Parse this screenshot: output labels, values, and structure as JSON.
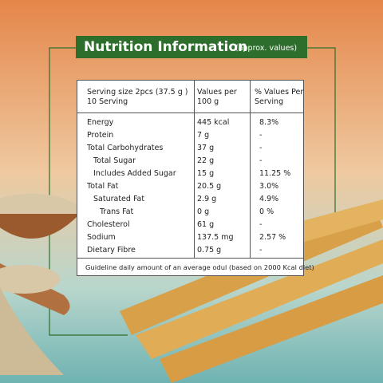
{
  "header": {
    "title": "Nutrition Information",
    "subtitle": "(approx. values)"
  },
  "table": {
    "columns": [
      [
        "Serving size 2pcs (37.5 g )",
        "10 Serving"
      ],
      [
        "Values per",
        "100 g"
      ],
      [
        "% Values Per",
        "Serving"
      ]
    ],
    "rows": [
      {
        "cells": [
          "Energy",
          "445 kcal",
          "8.3%"
        ],
        "indent": 0
      },
      {
        "cells": [
          "Protein",
          "7 g",
          "-"
        ],
        "indent": 0
      },
      {
        "cells": [
          "Total Carbohydrates",
          "37 g",
          "-"
        ],
        "indent": 0
      },
      {
        "cells": [
          "Total Sugar",
          "22 g",
          "-"
        ],
        "indent": 1
      },
      {
        "cells": [
          "Includes Added Sugar",
          "15 g",
          "11.25 %"
        ],
        "indent": 1
      },
      {
        "cells": [
          "Total Fat",
          "20.5 g",
          "3.0%"
        ],
        "indent": 0
      },
      {
        "cells": [
          "Saturated Fat",
          "2.9 g",
          "4.9%"
        ],
        "indent": 1
      },
      {
        "cells": [
          "Trans Fat",
          "0 g",
          "0 %"
        ],
        "indent": 2
      },
      {
        "cells": [
          "Cholesterol",
          "61 g",
          "-"
        ],
        "indent": 0
      },
      {
        "cells": [
          "Sodium",
          "137.5 mg",
          "2.57 %"
        ],
        "indent": 0
      },
      {
        "cells": [
          "Dietary Fibre",
          "0.75 g",
          "-"
        ],
        "indent": 0
      }
    ],
    "footnote": "Guideline daily amount of an average odul (based on 2000 Kcal diet)"
  }
}
